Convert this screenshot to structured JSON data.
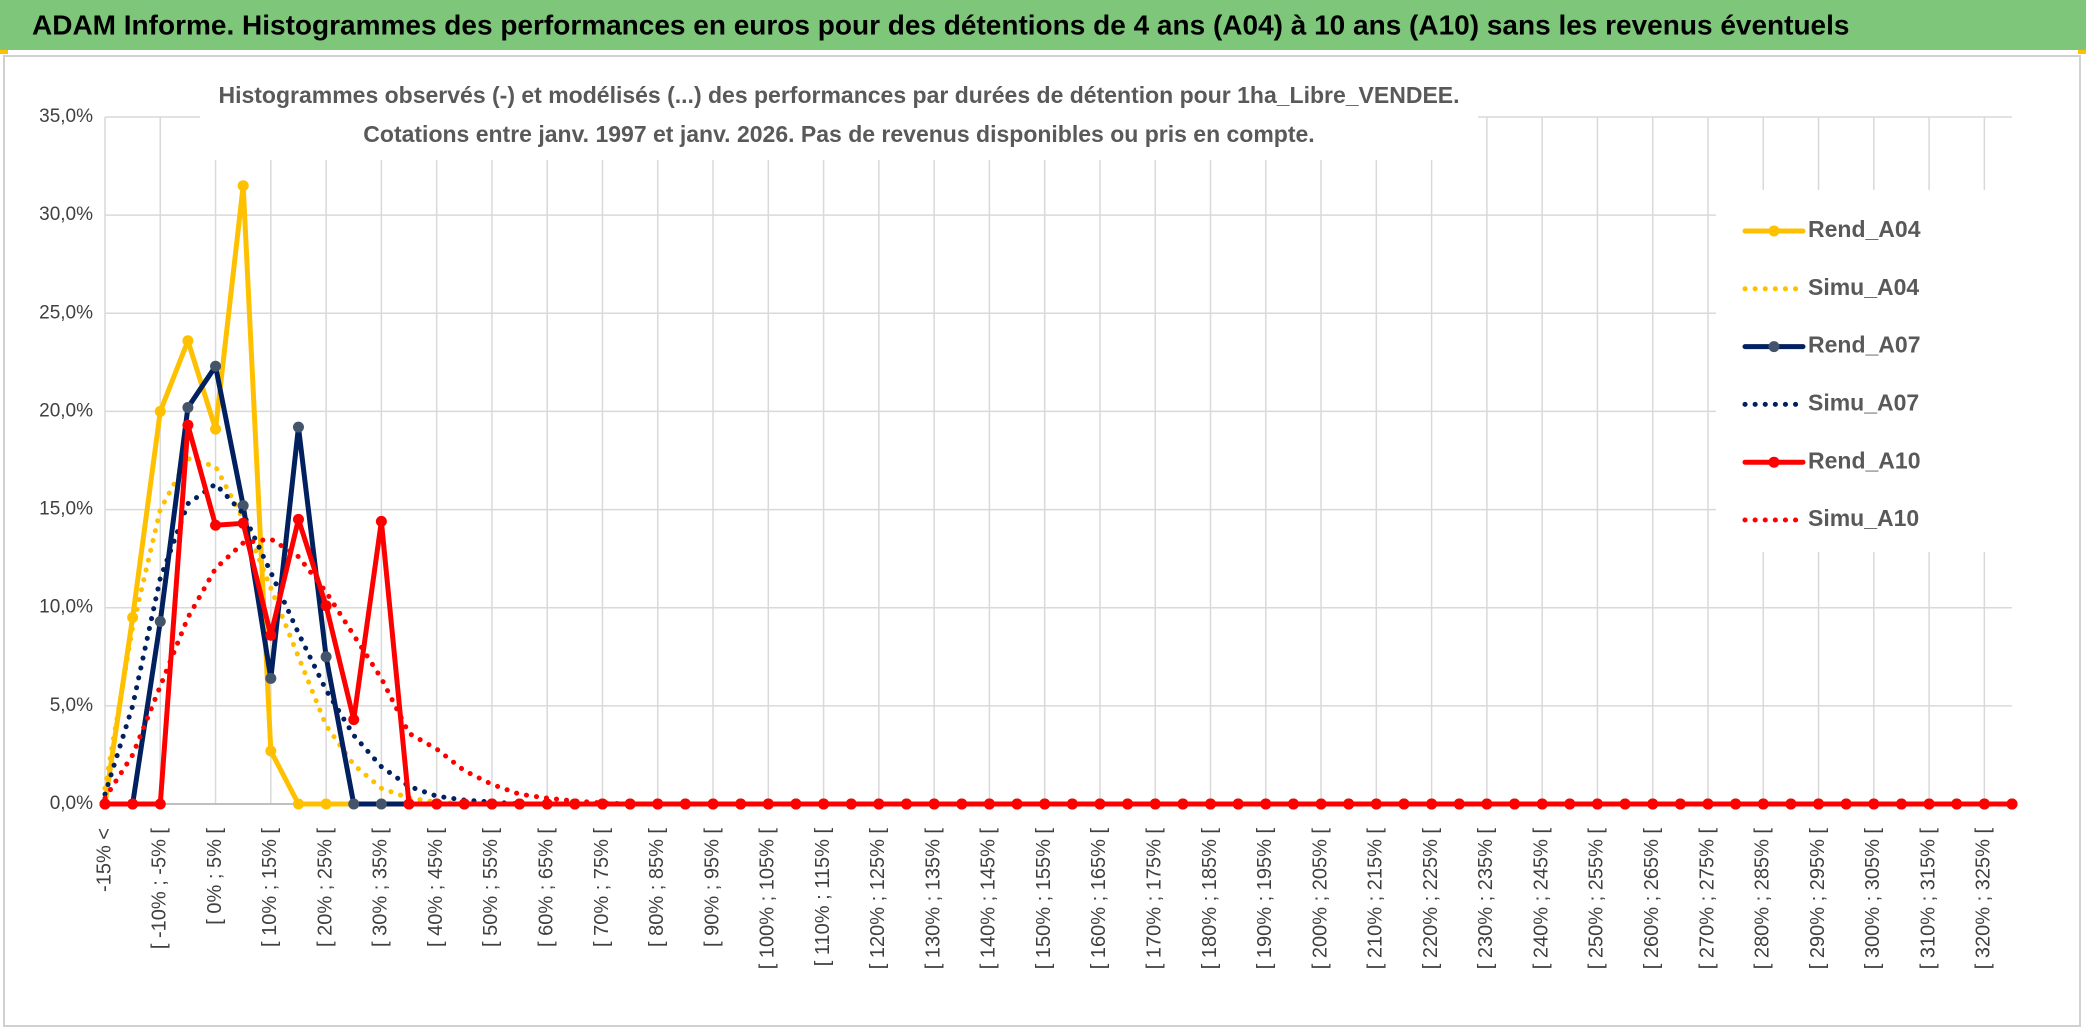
{
  "header": {
    "title": "ADAM Informe. Histogrammes des performances en euros pour des détentions de 4 ans (A04) à 10 ans (A10) sans les revenus éventuels"
  },
  "chart_data": {
    "type": "line",
    "title": "Histogrammes observés (-) et modélisés (...) des performances par durées de détention pour 1ha_Libre_VENDEE.",
    "subtitle": "Cotations entre janv. 1997 et janv. 2026. Pas de revenus disponibles ou pris en compte.",
    "categories": [
      "-15% <",
      null,
      "[ -10% ; -5% [",
      null,
      "[ 0% ; 5% [",
      null,
      "[ 10% ; 15% [",
      null,
      "[ 20% ; 25% [",
      null,
      "[ 30% ; 35% [",
      null,
      "[ 40% ; 45% [",
      null,
      "[ 50% ; 55% [",
      null,
      "[ 60% ; 65% [",
      null,
      "[ 70% ; 75% [",
      null,
      "[ 80% ; 85% [",
      null,
      "[ 90% ; 95% [",
      null,
      "[ 100% ; 105% [",
      null,
      "[ 110% ; 115% [",
      null,
      "[ 120% ; 125% [",
      null,
      "[ 130% ; 135% [",
      null,
      "[ 140% ; 145% [",
      null,
      "[ 150% ; 155% [",
      null,
      "[ 160% ; 165% [",
      null,
      "[ 170% ; 175% [",
      null,
      "[ 180% ; 185% [",
      null,
      "[ 190% ; 195% [",
      null,
      "[ 200% ; 205% [",
      null,
      "[ 210% ; 215% [",
      null,
      "[ 220% ; 225% [",
      null,
      "[ 230% ; 235% [",
      null,
      "[ 240% ; 245% [",
      null,
      "[ 250% ; 255% [",
      null,
      "[ 260% ; 265% [",
      null,
      "[ 270% ; 275% [",
      null,
      "[ 280% ; 285% [",
      null,
      "[ 290% ; 295% [",
      null,
      "[ 300% ; 305% [",
      null,
      "[ 310% ; 315% [",
      null,
      "[ 320% ; 325% [",
      null
    ],
    "series": [
      {
        "name": "Rend_A04",
        "color": "#ffc000",
        "dash": "solid",
        "marker": true,
        "marker_color": "#ffc000",
        "values": [
          0,
          9.5,
          20.0,
          23.6,
          19.1,
          31.5,
          2.7,
          0,
          0,
          0,
          0,
          0,
          0,
          0,
          0,
          0,
          0,
          0,
          0,
          0,
          0,
          0,
          0,
          0,
          0,
          0,
          0,
          0,
          0,
          0,
          0,
          0,
          0,
          0,
          0,
          0,
          0,
          0,
          0,
          0,
          0,
          0,
          0,
          0,
          0,
          0,
          0,
          0,
          0,
          0,
          0,
          0,
          0,
          0,
          0,
          0,
          0,
          0,
          0,
          0,
          0,
          0,
          0,
          0,
          0,
          0,
          0,
          0,
          0,
          0
        ]
      },
      {
        "name": "Simu_A04",
        "color": "#ffc000",
        "dash": "dot",
        "marker": false,
        "values": [
          0.8,
          9,
          15,
          17.6,
          17.2,
          14.5,
          11,
          7.5,
          4,
          2,
          0.8,
          0.3,
          0.1,
          0,
          0,
          0,
          0,
          0,
          0,
          0,
          0,
          0,
          0,
          0,
          0,
          0,
          0,
          0,
          0,
          0,
          0,
          0,
          0,
          0,
          0,
          0,
          0,
          0,
          0,
          0,
          0,
          0,
          0,
          0,
          0,
          0,
          0,
          0,
          0,
          0,
          0,
          0,
          0,
          0,
          0,
          0,
          0,
          0,
          0,
          0,
          0,
          0,
          0,
          0,
          0,
          0,
          0,
          0,
          0,
          0
        ]
      },
      {
        "name": "Rend_A07",
        "color": "#002060",
        "dash": "solid",
        "marker": true,
        "marker_color": "#44546a",
        "values": [
          0,
          0,
          9.3,
          20.2,
          22.3,
          15.2,
          6.4,
          19.2,
          7.5,
          0,
          0,
          0,
          0,
          0,
          0,
          0,
          0,
          0,
          0,
          0,
          0,
          0,
          0,
          0,
          0,
          0,
          0,
          0,
          0,
          0,
          0,
          0,
          0,
          0,
          0,
          0,
          0,
          0,
          0,
          0,
          0,
          0,
          0,
          0,
          0,
          0,
          0,
          0,
          0,
          0,
          0,
          0,
          0,
          0,
          0,
          0,
          0,
          0,
          0,
          0,
          0,
          0,
          0,
          0,
          0,
          0,
          0,
          0,
          0,
          0
        ]
      },
      {
        "name": "Simu_A07",
        "color": "#002060",
        "dash": "dot",
        "marker": false,
        "values": [
          0.5,
          5,
          11.5,
          15.3,
          16.3,
          14.8,
          11.8,
          8.7,
          5.8,
          3.5,
          1.9,
          0.9,
          0.4,
          0.2,
          0.1,
          0,
          0,
          0,
          0,
          0,
          0,
          0,
          0,
          0,
          0,
          0,
          0,
          0,
          0,
          0,
          0,
          0,
          0,
          0,
          0,
          0,
          0,
          0,
          0,
          0,
          0,
          0,
          0,
          0,
          0,
          0,
          0,
          0,
          0,
          0,
          0,
          0,
          0,
          0,
          0,
          0,
          0,
          0,
          0,
          0,
          0,
          0,
          0,
          0,
          0,
          0,
          0,
          0,
          0,
          0
        ]
      },
      {
        "name": "Rend_A10",
        "color": "#ff0000",
        "dash": "solid",
        "marker": true,
        "marker_color": "#ff0000",
        "values": [
          0,
          0,
          0,
          19.3,
          14.2,
          14.3,
          8.6,
          14.5,
          10.1,
          4.3,
          14.4,
          0,
          0,
          0,
          0,
          0,
          0,
          0,
          0,
          0,
          0,
          0,
          0,
          0,
          0,
          0,
          0,
          0,
          0,
          0,
          0,
          0,
          0,
          0,
          0,
          0,
          0,
          0,
          0,
          0,
          0,
          0,
          0,
          0,
          0,
          0,
          0,
          0,
          0,
          0,
          0,
          0,
          0,
          0,
          0,
          0,
          0,
          0,
          0,
          0,
          0,
          0,
          0,
          0,
          0,
          0,
          0,
          0,
          0,
          0
        ]
      },
      {
        "name": "Simu_A10",
        "color": "#ff0000",
        "dash": "dot",
        "marker": false,
        "values": [
          0.3,
          2.5,
          6,
          9.5,
          12,
          13.3,
          13.5,
          12.6,
          10.8,
          8.6,
          6.4,
          3.6,
          2.8,
          1.7,
          1.0,
          0.5,
          0.3,
          0.15,
          0.05,
          0,
          0,
          0,
          0,
          0,
          0,
          0,
          0,
          0,
          0,
          0,
          0,
          0,
          0,
          0,
          0,
          0,
          0,
          0,
          0,
          0,
          0,
          0,
          0,
          0,
          0,
          0,
          0,
          0,
          0,
          0,
          0,
          0,
          0,
          0,
          0,
          0,
          0,
          0,
          0,
          0,
          0,
          0,
          0,
          0,
          0,
          0,
          0,
          0,
          0,
          0
        ]
      }
    ],
    "ylim": [
      0,
      35
    ],
    "yticks": [
      {
        "value": 0,
        "label": "0,0%"
      },
      {
        "value": 5,
        "label": "5,0%"
      },
      {
        "value": 10,
        "label": "10,0%"
      },
      {
        "value": 15,
        "label": "15,0%"
      },
      {
        "value": 20,
        "label": "20,0%"
      },
      {
        "value": 25,
        "label": "25,0%"
      },
      {
        "value": 30,
        "label": "30,0%"
      },
      {
        "value": 35,
        "label": "35,0%"
      }
    ],
    "grid": true,
    "legend": "right"
  }
}
